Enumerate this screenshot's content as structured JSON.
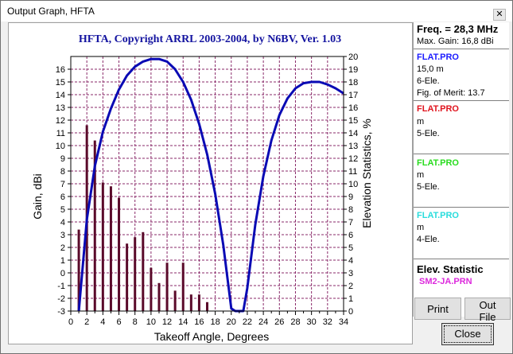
{
  "window": {
    "title": "Output Graph, HFTA",
    "close_glyph": "✕"
  },
  "chart_data": {
    "type": "bar",
    "title": "HFTA, Copyright ARRL 2003-2004, by N6BV, Ver. 1.03",
    "xlabel": "Takeoff Angle, Degrees",
    "ylabel": "Gain, dBi",
    "y2label": "Elevation Statistics, %",
    "xlim": [
      0,
      34
    ],
    "ylim": [
      -3,
      17
    ],
    "y2lim": [
      0,
      20
    ],
    "grid": true,
    "bar_color": "#5a0a2a",
    "curve_color": "#0a0ab4",
    "bars": {
      "name": "Elevation Statistics",
      "x": [
        1,
        2,
        3,
        4,
        5,
        6,
        7,
        8,
        9,
        10,
        11,
        12,
        13,
        14,
        15,
        16,
        17
      ],
      "values": [
        6.4,
        14.6,
        13.4,
        10.1,
        9.8,
        8.9,
        5.3,
        5.8,
        6.2,
        3.4,
        2.2,
        3.8,
        1.6,
        3.8,
        1.3,
        1.3,
        0.7
      ]
    },
    "gain_curve": {
      "name": "FLAT.PRO 15,0 m 6-Ele.",
      "x": [
        1,
        2,
        3,
        4,
        5,
        6,
        7,
        8,
        9,
        10,
        11,
        12,
        13,
        14,
        15,
        16,
        17,
        18,
        19,
        20,
        20.5,
        21.5,
        22,
        23,
        24,
        25,
        26,
        27,
        28,
        29,
        30,
        31,
        32,
        33,
        34
      ],
      "y": [
        -3,
        4.2,
        8.4,
        11.1,
        12.9,
        14.4,
        15.5,
        16.2,
        16.6,
        16.8,
        16.8,
        16.6,
        16.0,
        15.0,
        13.6,
        11.7,
        9.3,
        6.2,
        2.2,
        -2.8,
        -3,
        -3,
        -1.2,
        3.8,
        7.6,
        10.4,
        12.4,
        13.7,
        14.5,
        14.9,
        15.0,
        15.0,
        14.8,
        14.5,
        14.1
      ]
    }
  },
  "panel": {
    "freq": "Freq. = 28,3 MHz",
    "max_gain": "Max. Gain: 16,8 dBi",
    "antennas": [
      {
        "file": "FLAT.PRO",
        "height": "15,0 m",
        "elements": "6-Ele.",
        "merit": "Fig. of Merit:  13.7",
        "color": "#1a1aff"
      },
      {
        "file": "FLAT.PRO",
        "height": " m",
        "elements": "5-Ele.",
        "merit": "",
        "color": "#e0141e"
      },
      {
        "file": "FLAT.PRO",
        "height": " m",
        "elements": "5-Ele.",
        "merit": "",
        "color": "#28dc1e"
      },
      {
        "file": "FLAT.PRO",
        "height": " m",
        "elements": "4-Ele.",
        "merit": "",
        "color": "#28dcdc"
      }
    ],
    "elev_header": "Elev. Statistic",
    "elev_file": "SM2-JA.PRN",
    "elev_file_color": "#dc28dc"
  },
  "buttons": {
    "print": "Print",
    "out_file": "Out File",
    "close": "Close"
  }
}
